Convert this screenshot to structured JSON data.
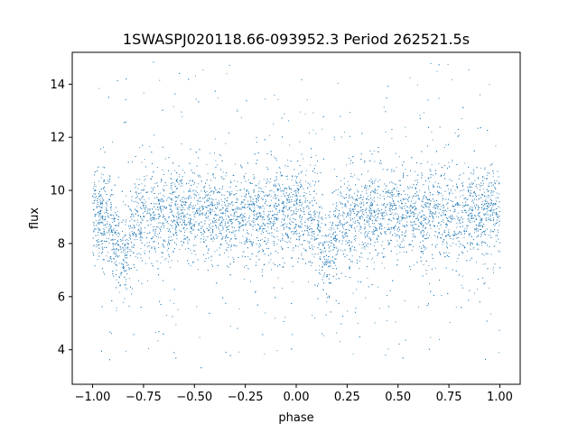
{
  "chart_data": {
    "type": "scatter",
    "title": "1SWASPJ020118.66-093952.3 Period 262521.5s",
    "xlabel": "phase",
    "ylabel": "flux",
    "xlim": [
      -1.1,
      1.1
    ],
    "ylim": [
      2.7,
      15.2
    ],
    "xticks": [
      -1.0,
      -0.75,
      -0.5,
      -0.25,
      0.0,
      0.25,
      0.5,
      0.75,
      1.0
    ],
    "xtick_labels": [
      "−1.00",
      "−0.75",
      "−0.50",
      "−0.25",
      "0.00",
      "0.25",
      "0.50",
      "0.75",
      "1.00"
    ],
    "yticks": [
      4,
      6,
      8,
      10,
      12,
      14
    ],
    "ytick_labels": [
      "4",
      "6",
      "8",
      "10",
      "12",
      "14"
    ],
    "grid": false,
    "point_color": "#1f77b4",
    "series": [
      {
        "x_range": [
          -1.0,
          1.0
        ],
        "y_range": [
          3.3,
          14.9
        ],
        "baseline": 9.1,
        "core_spread": 0.85,
        "dips": [
          {
            "phase": -0.85,
            "depth": 1.6,
            "width": 0.035
          },
          {
            "phase": 0.15,
            "depth": 1.6,
            "width": 0.035
          }
        ],
        "points": [
          [
            -0.98,
            9.1
          ],
          [
            -0.85,
            7.4
          ],
          [
            -0.7,
            9.2
          ],
          [
            -0.5,
            9.1
          ],
          [
            -0.25,
            9.0
          ],
          [
            0.0,
            9.1
          ],
          [
            0.15,
            7.4
          ],
          [
            0.3,
            9.2
          ],
          [
            0.5,
            9.1
          ],
          [
            0.75,
            9.0
          ],
          [
            0.98,
            9.1
          ]
        ]
      }
    ]
  }
}
